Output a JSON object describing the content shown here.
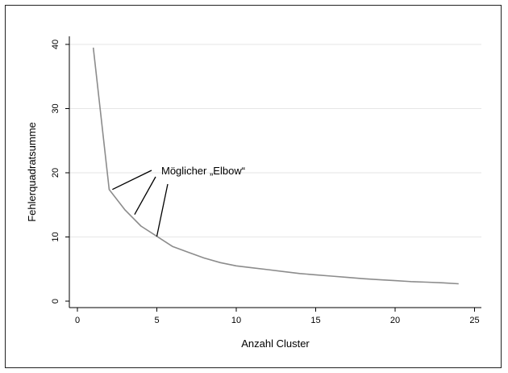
{
  "chart_data": {
    "type": "line",
    "xlabel": "Anzahl Cluster",
    "ylabel": "Fehlerquadratsumme",
    "xlim": [
      0,
      25
    ],
    "ylim": [
      0,
      40
    ],
    "xticks": [
      0,
      5,
      10,
      15,
      20,
      25
    ],
    "yticks": [
      0,
      10,
      20,
      30,
      40
    ],
    "grid": "horizontal",
    "series": [
      {
        "color": "#8c8c8c",
        "x": [
          1,
          2,
          3,
          4,
          5,
          6,
          7,
          8,
          9,
          10,
          11,
          12,
          13,
          14,
          15,
          16,
          17,
          18,
          19,
          20,
          21,
          22,
          23,
          24
        ],
        "y": [
          39.5,
          17.4,
          14.2,
          11.7,
          10.1,
          8.5,
          7.6,
          6.7,
          6.0,
          5.5,
          5.2,
          4.9,
          4.6,
          4.3,
          4.1,
          3.9,
          3.7,
          3.5,
          3.35,
          3.2,
          3.05,
          2.95,
          2.85,
          2.7
        ]
      }
    ],
    "annotations": [
      {
        "text": "Möglicher „Elbow“",
        "targets": [
          {
            "x": 2.2,
            "y": 17.4
          },
          {
            "x": 3.6,
            "y": 13.5
          },
          {
            "x": 5.0,
            "y": 10.1
          }
        ]
      }
    ]
  }
}
